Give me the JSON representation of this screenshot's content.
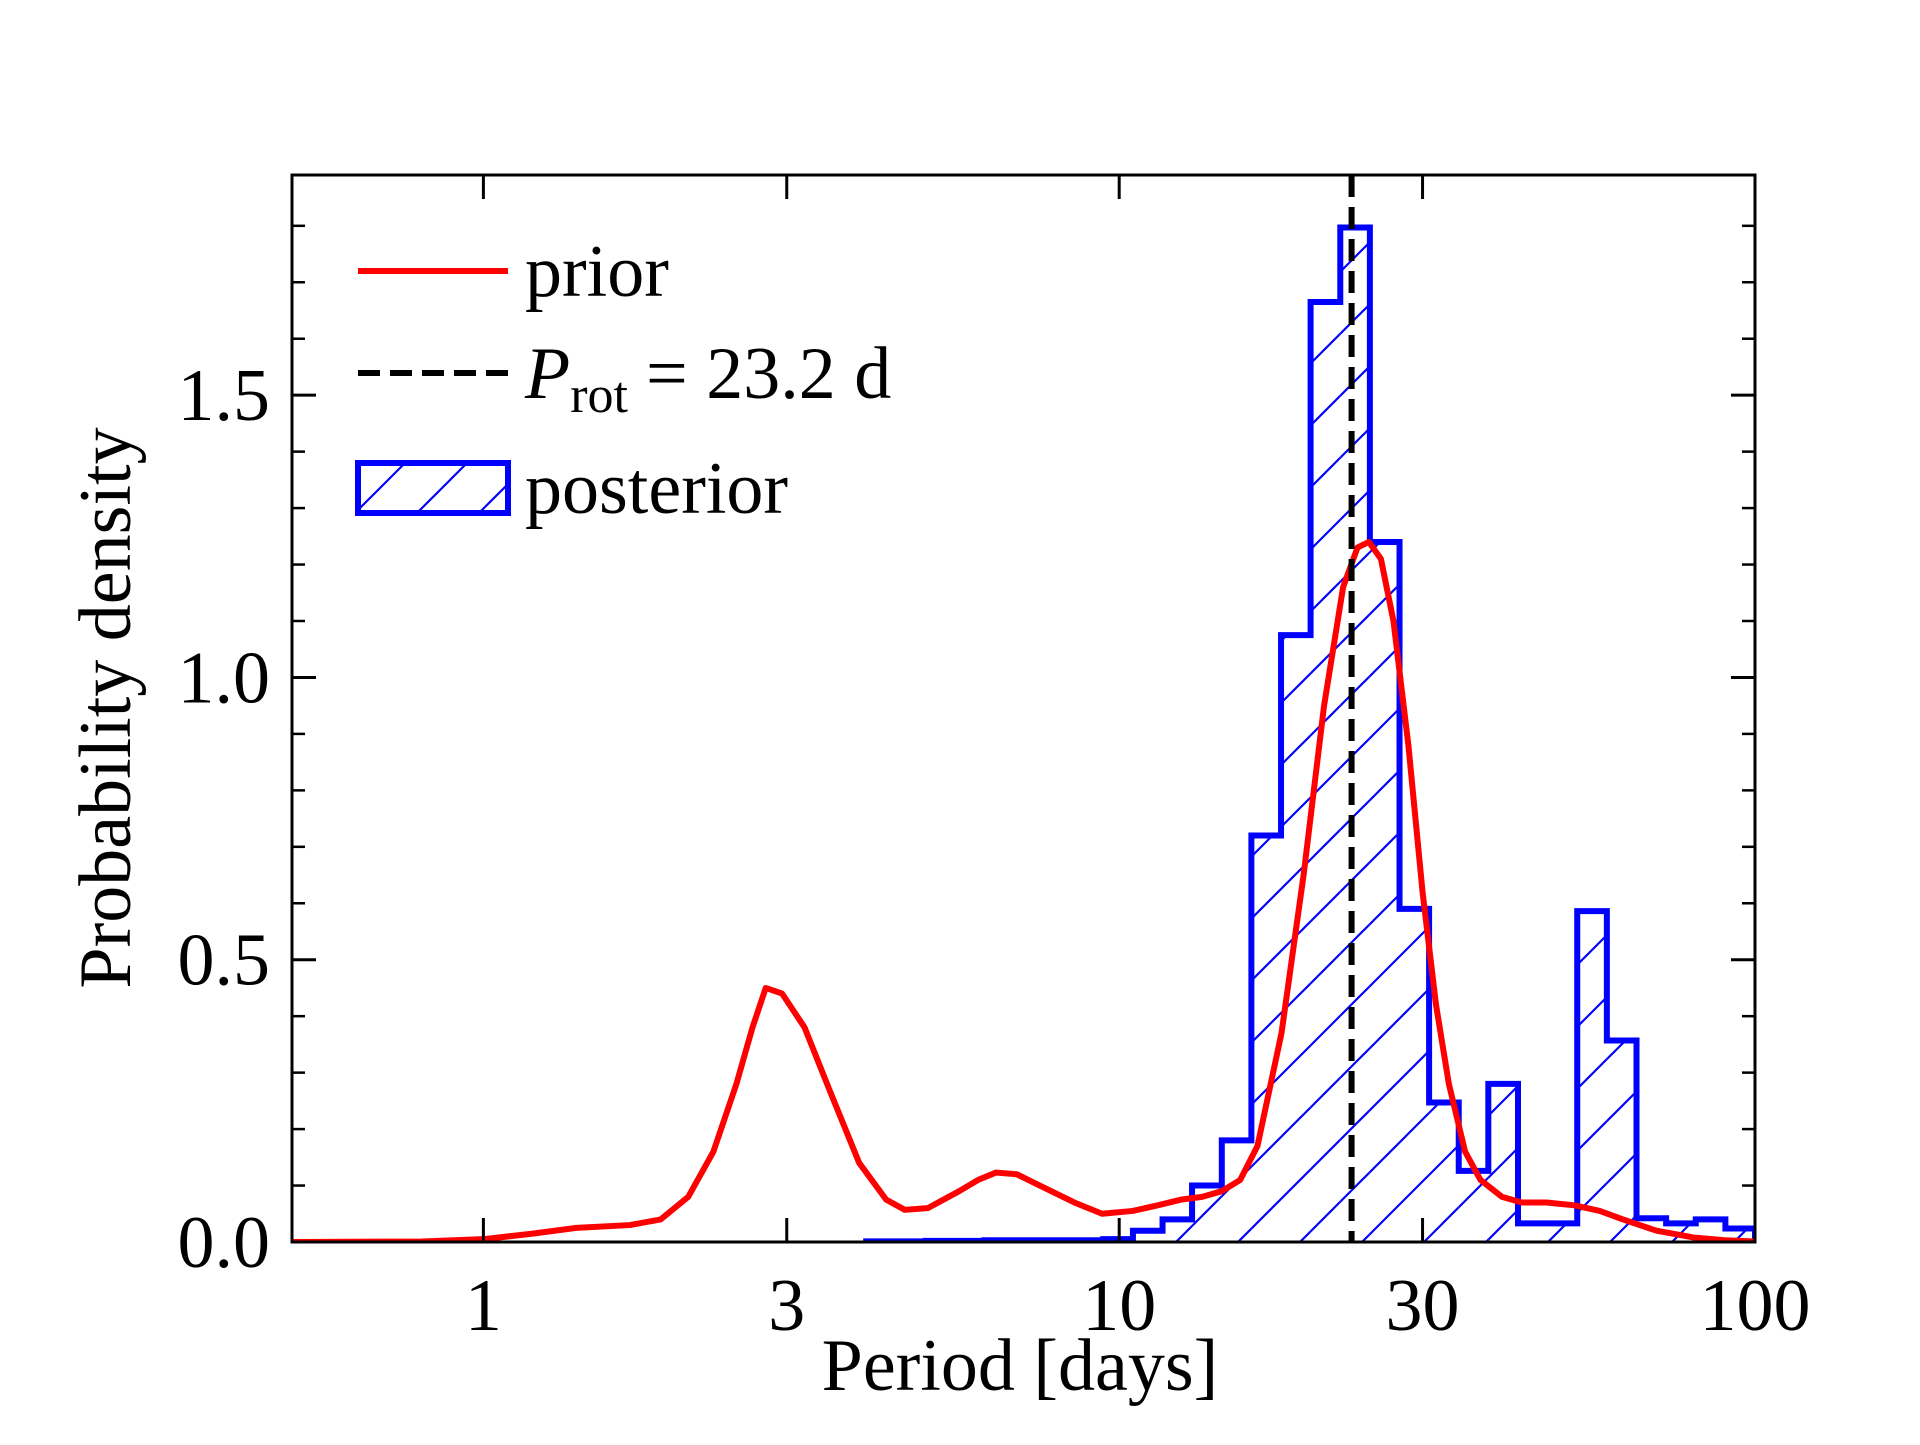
{
  "chart_data": {
    "type": "histogram",
    "xlabel": "Period [days]",
    "ylabel": "Probability density",
    "xscale": "log",
    "xlim": [
      0.5,
      100
    ],
    "ylim": [
      0,
      1.89
    ],
    "xticks": [
      1,
      3,
      10,
      30,
      100
    ],
    "yticks": [
      {
        "value": 0,
        "label": "0.0"
      },
      0.5,
      {
        "value": 1,
        "label": "1.0"
      },
      1.5
    ],
    "yminorticks": [
      0.1,
      0.2,
      0.3,
      0.4,
      0.6,
      0.7,
      0.8,
      0.9,
      1.1,
      1.2,
      1.3,
      1.4,
      1.6,
      1.7,
      1.8
    ],
    "legend": "upper left",
    "histogram": {
      "name": "posterior",
      "color": "#0000ff",
      "hatch": "/",
      "bins": [
        4.0,
        4.45,
        4.96,
        5.52,
        6.14,
        6.84,
        7.62,
        8.48,
        9.44,
        10.51,
        11.7,
        13.02,
        14.5,
        16.14,
        17.97,
        20.0,
        22.27,
        24.79,
        27.6,
        30.72,
        34.2,
        38.07,
        42.39,
        47.19,
        52.53,
        58.48,
        65.11,
        72.48,
        80.69,
        89.83,
        100.0
      ],
      "counts": [
        0.001,
        0.001,
        0.002,
        0.002,
        0.003,
        0.003,
        0.003,
        0.003,
        0.005,
        0.02,
        0.04,
        0.1,
        0.18,
        0.72,
        1.075,
        1.665,
        1.797,
        1.24,
        0.59,
        0.247,
        0.126,
        0.28,
        0.033,
        0.033,
        0.586,
        0.357,
        0.042,
        0.033,
        0.04,
        0.024
      ]
    },
    "line": {
      "name": "prior",
      "color": "#ff0000",
      "x": [
        0.5,
        0.8,
        1.0,
        1.2,
        1.4,
        1.7,
        1.9,
        2.1,
        2.3,
        2.5,
        2.65,
        2.78,
        2.95,
        3.2,
        3.5,
        3.9,
        4.3,
        4.6,
        5.0,
        5.6,
        6.0,
        6.4,
        6.9,
        7.5,
        8.5,
        9.4,
        10.5,
        11.5,
        12.5,
        13.5,
        14.5,
        15.5,
        16.5,
        18.0,
        19.5,
        21.0,
        22.5,
        23.7,
        24.7,
        25.8,
        27.0,
        28.5,
        30.0,
        31.5,
        33.0,
        35.0,
        37.0,
        40.0,
        43.0,
        47.0,
        52.0,
        57.0,
        62.0,
        70.0,
        80.0,
        90.0,
        100.0
      ],
      "y": [
        0.0,
        0.001,
        0.005,
        0.015,
        0.025,
        0.03,
        0.04,
        0.08,
        0.16,
        0.28,
        0.38,
        0.45,
        0.44,
        0.38,
        0.27,
        0.14,
        0.075,
        0.057,
        0.06,
        0.09,
        0.11,
        0.123,
        0.12,
        0.1,
        0.07,
        0.05,
        0.055,
        0.065,
        0.075,
        0.08,
        0.09,
        0.11,
        0.17,
        0.37,
        0.65,
        0.95,
        1.16,
        1.23,
        1.24,
        1.21,
        1.1,
        0.88,
        0.62,
        0.42,
        0.28,
        0.16,
        0.11,
        0.08,
        0.07,
        0.07,
        0.065,
        0.055,
        0.04,
        0.02,
        0.008,
        0.003,
        0.001
      ]
    },
    "vline": {
      "x": 23.2,
      "color": "#000000",
      "style": "dashed",
      "label_symbol": "P",
      "label_subscript": "rot",
      "label_text": "= 23.2 d"
    }
  }
}
